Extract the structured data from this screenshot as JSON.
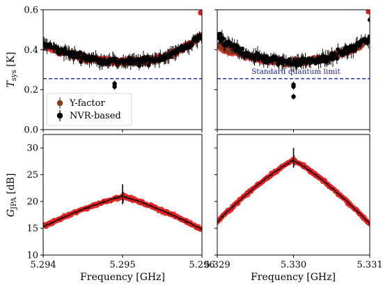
{
  "colors": {
    "nvr": "#000000",
    "yfactor": "#8b3a1a",
    "red_overlay": "#e02020",
    "limit": "#00008b"
  },
  "legend": {
    "entries": [
      {
        "label": "Y-factor",
        "color": "#8b3a1a"
      },
      {
        "label": "NVR-based",
        "color": "#000000"
      }
    ]
  },
  "chart_data": [
    {
      "type": "scatter",
      "ylabel": "T_sys [K]",
      "xlim": [
        5.294,
        5.296
      ],
      "ylim": [
        0.0,
        0.6
      ],
      "yticks": [
        "0.0",
        "0.2",
        "0.4",
        "0.6"
      ],
      "reference_line": {
        "y": 0.255,
        "style": "dashed",
        "label": ""
      },
      "series": [
        {
          "name": "Y-factor",
          "curve": "bathtub",
          "center": 5.2951,
          "min": 0.34,
          "edge_left": 0.42,
          "edge_right": 0.47,
          "noise": 0.025,
          "outliers": [
            {
              "x": 5.296,
              "y": 0.585
            }
          ]
        },
        {
          "name": "NVR-based",
          "curve": "bathtub",
          "center": 5.2951,
          "min": 0.34,
          "edge_left": 0.43,
          "edge_right": 0.47,
          "noise": 0.03,
          "outliers": [
            {
              "x": 5.2949,
              "y": 0.215
            },
            {
              "x": 5.2949,
              "y": 0.23
            }
          ]
        }
      ]
    },
    {
      "type": "scatter",
      "xlim": [
        5.329,
        5.331
      ],
      "ylim": [
        0.0,
        0.6
      ],
      "reference_line": {
        "y": 0.255,
        "style": "dashed",
        "label": "Standard quantum limit"
      },
      "series": [
        {
          "name": "Y-factor",
          "curve": "bathtub",
          "center": 5.33,
          "min": 0.34,
          "edge_left": 0.42,
          "edge_right": 0.45,
          "noise": 0.025,
          "outliers": [
            {
              "x": 5.331,
              "y": 0.59
            }
          ]
        },
        {
          "name": "NVR-based",
          "curve": "bathtub",
          "center": 5.33,
          "min": 0.34,
          "edge_left": 0.46,
          "edge_right": 0.46,
          "noise": 0.035,
          "outliers": [
            {
              "x": 5.33,
              "y": 0.165
            },
            {
              "x": 5.33,
              "y": 0.215
            },
            {
              "x": 5.33,
              "y": 0.225
            },
            {
              "x": 5.331,
              "y": 0.55
            }
          ]
        }
      ]
    },
    {
      "type": "line",
      "xlabel": "Frequency [GHz]",
      "ylabel": "G_JPA [dB]",
      "xlim": [
        5.294,
        5.296
      ],
      "ylim": [
        10,
        32.5
      ],
      "xticks": [
        "5.294",
        "5.295",
        "5.296"
      ],
      "yticks": [
        "10",
        "15",
        "20",
        "25",
        "30"
      ],
      "series": [
        {
          "name": "gain",
          "curve": "peak",
          "center": 5.295,
          "peak": 21.0,
          "edge_left": 15.3,
          "edge_right": 14.8,
          "spike": 23.2
        }
      ]
    },
    {
      "type": "line",
      "xlabel": "Frequency [GHz]",
      "xlim": [
        5.329,
        5.331
      ],
      "ylim": [
        10,
        32.5
      ],
      "xticks": [
        "5.329",
        "5.330",
        "5.331"
      ],
      "series": [
        {
          "name": "gain",
          "curve": "peak",
          "center": 5.33,
          "peak": 27.8,
          "edge_left": 16.2,
          "edge_right": 15.8,
          "spike": 30.0
        }
      ]
    }
  ]
}
